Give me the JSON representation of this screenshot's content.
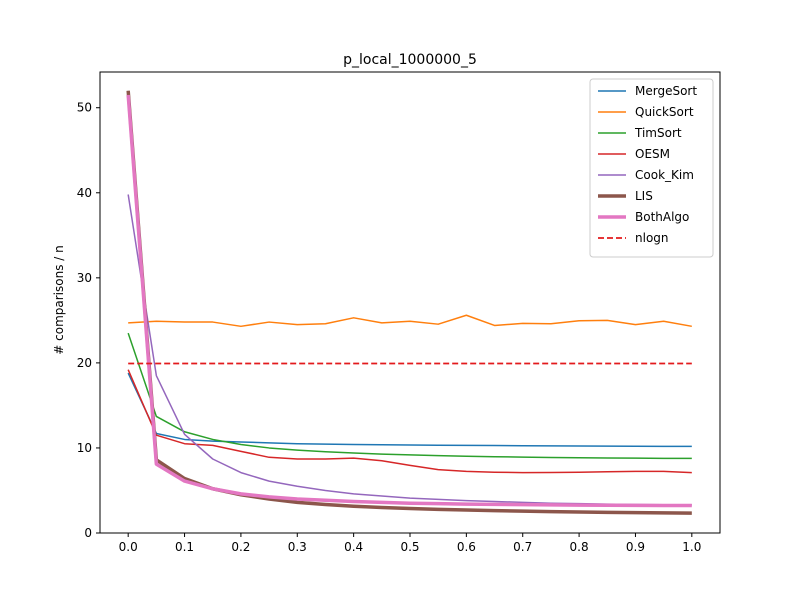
{
  "chart_data": {
    "type": "line",
    "title": "p_local_1000000_5",
    "xlabel": "",
    "ylabel": "# comparisons / n",
    "xlim": [
      -0.05,
      1.05
    ],
    "ylim": [
      0,
      54.2
    ],
    "xticks": [
      0.0,
      0.1,
      0.2,
      0.3,
      0.4,
      0.5,
      0.6,
      0.7,
      0.8,
      0.9,
      1.0
    ],
    "xtick_labels": [
      "0.0",
      "0.1",
      "0.2",
      "0.3",
      "0.4",
      "0.5",
      "0.6",
      "0.7",
      "0.8",
      "0.9",
      "1.0"
    ],
    "yticks": [
      0,
      10,
      20,
      30,
      40,
      50
    ],
    "ytick_labels": [
      "0",
      "10",
      "20",
      "30",
      "40",
      "50"
    ],
    "grid": false,
    "legend_position": "top-right",
    "x": [
      0.0,
      0.05,
      0.1,
      0.15,
      0.2,
      0.25,
      0.3,
      0.35,
      0.4,
      0.45,
      0.5,
      0.55,
      0.6,
      0.65,
      0.7,
      0.75,
      0.8,
      0.85,
      0.9,
      0.95,
      1.0
    ],
    "series": [
      {
        "name": "MergeSort",
        "color": "#1f77b4",
        "width": 1.5,
        "dash": "",
        "values": [
          18.8,
          11.7,
          11.0,
          10.8,
          10.7,
          10.6,
          10.5,
          10.45,
          10.4,
          10.37,
          10.34,
          10.32,
          10.3,
          10.28,
          10.26,
          10.25,
          10.23,
          10.22,
          10.2,
          10.19,
          10.18
        ]
      },
      {
        "name": "QuickSort",
        "color": "#ff7f0e",
        "width": 1.5,
        "dash": "",
        "values": [
          24.7,
          24.9,
          24.8,
          24.8,
          24.3,
          24.8,
          24.5,
          24.6,
          25.3,
          24.7,
          24.9,
          24.55,
          25.6,
          24.4,
          24.65,
          24.6,
          24.95,
          25.0,
          24.5,
          24.9,
          24.3
        ]
      },
      {
        "name": "TimSort",
        "color": "#2ca02c",
        "width": 1.5,
        "dash": "",
        "values": [
          23.5,
          13.7,
          11.9,
          11.0,
          10.4,
          10.0,
          9.75,
          9.55,
          9.4,
          9.28,
          9.18,
          9.1,
          9.03,
          8.97,
          8.92,
          8.88,
          8.85,
          8.82,
          8.8,
          8.78,
          8.77
        ]
      },
      {
        "name": "OESM",
        "color": "#d62728",
        "width": 1.5,
        "dash": "",
        "values": [
          19.2,
          11.5,
          10.5,
          10.3,
          9.6,
          8.9,
          8.7,
          8.7,
          8.8,
          8.5,
          7.95,
          7.45,
          7.25,
          7.15,
          7.1,
          7.12,
          7.15,
          7.2,
          7.25,
          7.25,
          7.1
        ]
      },
      {
        "name": "Cook_Kim",
        "color": "#9467bd",
        "width": 1.5,
        "dash": "",
        "values": [
          39.8,
          18.5,
          11.6,
          8.7,
          7.1,
          6.1,
          5.5,
          5.0,
          4.6,
          4.35,
          4.1,
          3.95,
          3.8,
          3.7,
          3.6,
          3.5,
          3.45,
          3.4,
          3.35,
          3.32,
          3.3
        ]
      },
      {
        "name": "LIS",
        "color": "#8c564b",
        "width": 3.5,
        "dash": "",
        "values": [
          52.0,
          8.6,
          6.4,
          5.2,
          4.5,
          4.0,
          3.6,
          3.35,
          3.15,
          3.0,
          2.88,
          2.78,
          2.7,
          2.63,
          2.57,
          2.52,
          2.47,
          2.43,
          2.4,
          2.37,
          2.34
        ]
      },
      {
        "name": "BothAlgo",
        "color": "#e377c2",
        "width": 3.5,
        "dash": "",
        "values": [
          51.5,
          8.1,
          6.1,
          5.2,
          4.6,
          4.25,
          4.0,
          3.85,
          3.7,
          3.6,
          3.5,
          3.45,
          3.4,
          3.36,
          3.33,
          3.3,
          3.28,
          3.26,
          3.25,
          3.24,
          3.23
        ]
      },
      {
        "name": "nlogn",
        "color": "#e31a1c",
        "width": 1.8,
        "dash": "6,3",
        "values": [
          19.93,
          19.93,
          19.93,
          19.93,
          19.93,
          19.93,
          19.93,
          19.93,
          19.93,
          19.93,
          19.93,
          19.93,
          19.93,
          19.93,
          19.93,
          19.93,
          19.93,
          19.93,
          19.93,
          19.93,
          19.93
        ]
      }
    ]
  }
}
